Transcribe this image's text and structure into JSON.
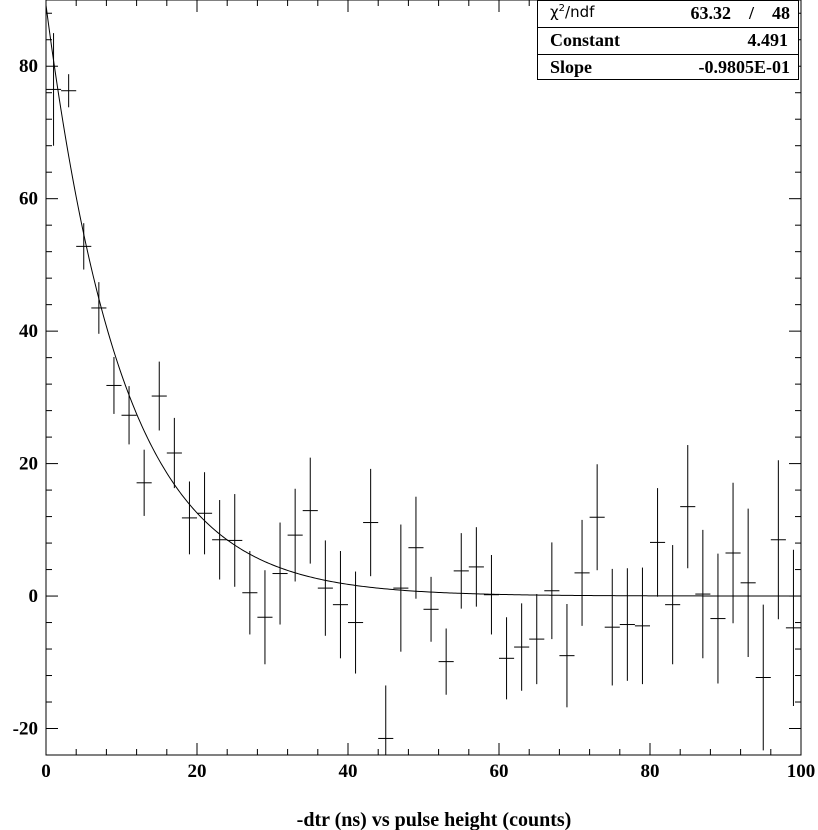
{
  "stats_box": {
    "rows": [
      {
        "name_prefix": "χ",
        "name_sup": "2",
        "name_suffix": "/ndf",
        "value": "63.32    /    48"
      },
      {
        "name": "Constant",
        "value": "4.491"
      },
      {
        "name": "Slope",
        "value": "-0.9805E-01"
      }
    ]
  },
  "chart_data": {
    "type": "scatter",
    "title": "",
    "xlabel": "-dtr (ns) vs pulse height (counts)",
    "ylabel": "",
    "xlim": [
      0,
      100
    ],
    "ylim": [
      -24,
      90
    ],
    "x_ticks": [
      0,
      20,
      40,
      60,
      80,
      100
    ],
    "y_ticks": [
      -20,
      0,
      20,
      40,
      60,
      80
    ],
    "grid": false,
    "fit": {
      "function": "exp(Constant + Slope*x)",
      "constant": 4.491,
      "slope": -0.09805
    },
    "bin_width": 2,
    "points": [
      {
        "x": 1,
        "y": 76.5,
        "err": 8.5
      },
      {
        "x": 3,
        "y": 76.3,
        "err": 2.5
      },
      {
        "x": 5,
        "y": 52.8,
        "err": 3.5
      },
      {
        "x": 7,
        "y": 43.5,
        "err": 3.9
      },
      {
        "x": 9,
        "y": 31.8,
        "err": 4.3
      },
      {
        "x": 11,
        "y": 27.3,
        "err": 4.4
      },
      {
        "x": 13,
        "y": 17.1,
        "err": 5.0
      },
      {
        "x": 15,
        "y": 30.2,
        "err": 5.2
      },
      {
        "x": 17,
        "y": 21.6,
        "err": 5.3
      },
      {
        "x": 19,
        "y": 11.8,
        "err": 5.5
      },
      {
        "x": 21,
        "y": 12.5,
        "err": 6.2
      },
      {
        "x": 23,
        "y": 8.5,
        "err": 6.0
      },
      {
        "x": 25,
        "y": 8.4,
        "err": 7.0
      },
      {
        "x": 27,
        "y": 0.5,
        "err": 6.3
      },
      {
        "x": 29,
        "y": -3.2,
        "err": 7.1
      },
      {
        "x": 31,
        "y": 3.4,
        "err": 7.7
      },
      {
        "x": 33,
        "y": 9.2,
        "err": 7.0
      },
      {
        "x": 35,
        "y": 12.9,
        "err": 8.0
      },
      {
        "x": 37,
        "y": 1.2,
        "err": 7.2
      },
      {
        "x": 39,
        "y": -1.3,
        "err": 8.1
      },
      {
        "x": 41,
        "y": -4.0,
        "err": 7.7
      },
      {
        "x": 43,
        "y": 11.1,
        "err": 8.1
      },
      {
        "x": 45,
        "y": -21.5,
        "err": 8.0
      },
      {
        "x": 47,
        "y": 1.2,
        "err": 9.6
      },
      {
        "x": 49,
        "y": 7.3,
        "err": 7.7
      },
      {
        "x": 51,
        "y": -2.0,
        "err": 4.9
      },
      {
        "x": 53,
        "y": -9.9,
        "err": 5.0
      },
      {
        "x": 55,
        "y": 3.8,
        "err": 5.7
      },
      {
        "x": 57,
        "y": 4.4,
        "err": 6.0
      },
      {
        "x": 59,
        "y": 0.2,
        "err": 6.0
      },
      {
        "x": 61,
        "y": -9.4,
        "err": 6.2
      },
      {
        "x": 63,
        "y": -7.7,
        "err": 6.6
      },
      {
        "x": 65,
        "y": -6.5,
        "err": 6.8
      },
      {
        "x": 67,
        "y": 0.8,
        "err": 7.3
      },
      {
        "x": 69,
        "y": -9.0,
        "err": 7.8
      },
      {
        "x": 71,
        "y": 3.5,
        "err": 8.0
      },
      {
        "x": 73,
        "y": 11.9,
        "err": 8.0
      },
      {
        "x": 75,
        "y": -4.7,
        "err": 8.8
      },
      {
        "x": 77,
        "y": -4.3,
        "err": 8.5
      },
      {
        "x": 79,
        "y": -4.5,
        "err": 8.8
      },
      {
        "x": 81,
        "y": 8.1,
        "err": 8.2
      },
      {
        "x": 83,
        "y": -1.3,
        "err": 9.0
      },
      {
        "x": 85,
        "y": 13.5,
        "err": 9.3
      },
      {
        "x": 87,
        "y": 0.3,
        "err": 9.7
      },
      {
        "x": 89,
        "y": -3.4,
        "err": 9.8
      },
      {
        "x": 91,
        "y": 6.5,
        "err": 10.6
      },
      {
        "x": 93,
        "y": 2.0,
        "err": 11.2
      },
      {
        "x": 95,
        "y": -12.3,
        "err": 11.0
      },
      {
        "x": 97,
        "y": 8.5,
        "err": 12.0
      },
      {
        "x": 99,
        "y": -4.8,
        "err": 11.8
      }
    ]
  }
}
